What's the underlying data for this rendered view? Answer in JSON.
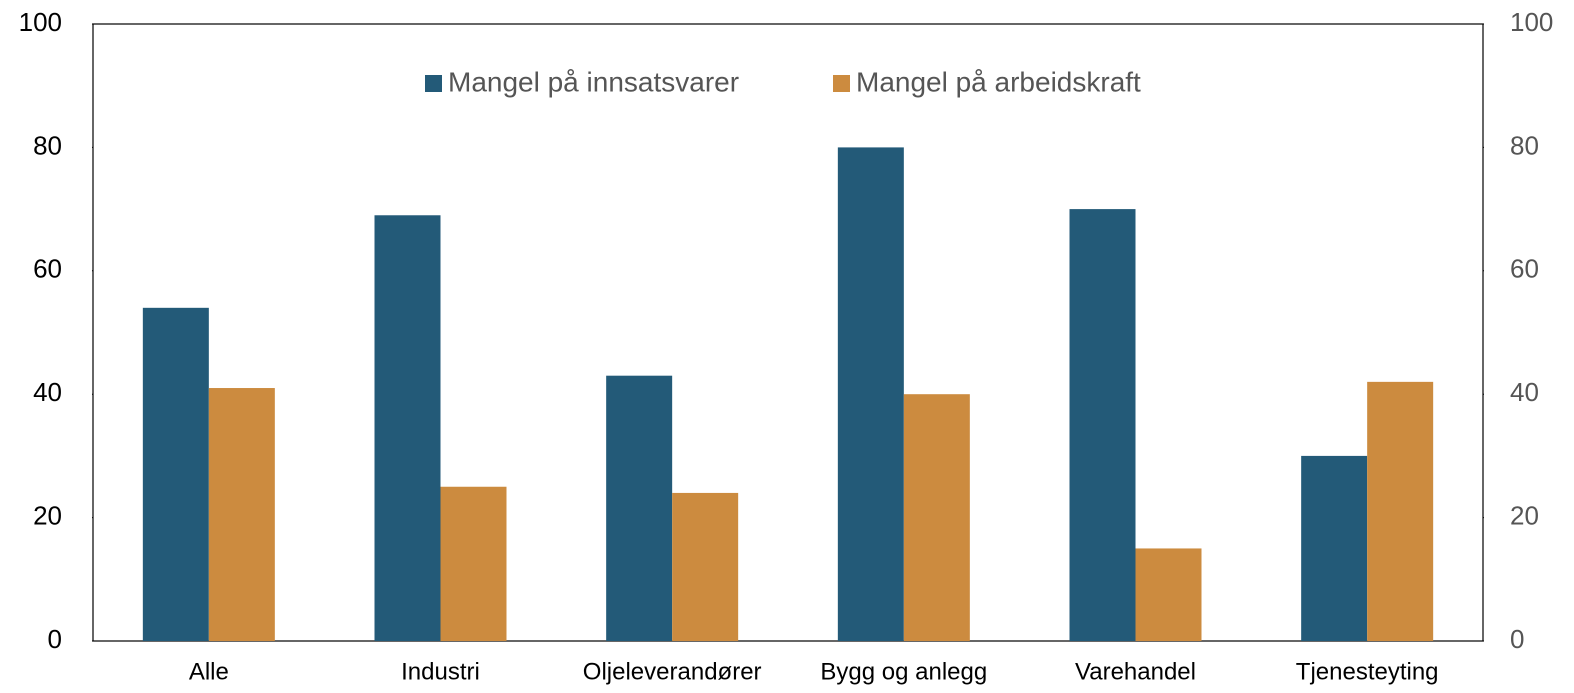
{
  "chart_data": {
    "type": "bar",
    "categories": [
      "Alle",
      "Industri",
      "Oljeleverandører",
      "Bygg og anlegg",
      "Varehandel",
      "Tjenesteyting"
    ],
    "series": [
      {
        "name": "Mangel på innsatsvarer",
        "color": "#235a78",
        "values": [
          54,
          69,
          43,
          80,
          70,
          30
        ]
      },
      {
        "name": "Mangel på arbeidskraft",
        "color": "#cc8b3f",
        "values": [
          41,
          25,
          24,
          40,
          15,
          42
        ]
      }
    ],
    "ylim": [
      0,
      100
    ],
    "yticks": [
      0,
      20,
      40,
      60,
      80,
      100
    ],
    "y2lim": [
      0,
      100
    ],
    "y2ticks": [
      0,
      20,
      40,
      60,
      80,
      100
    ],
    "grid": false,
    "legend": "top"
  }
}
